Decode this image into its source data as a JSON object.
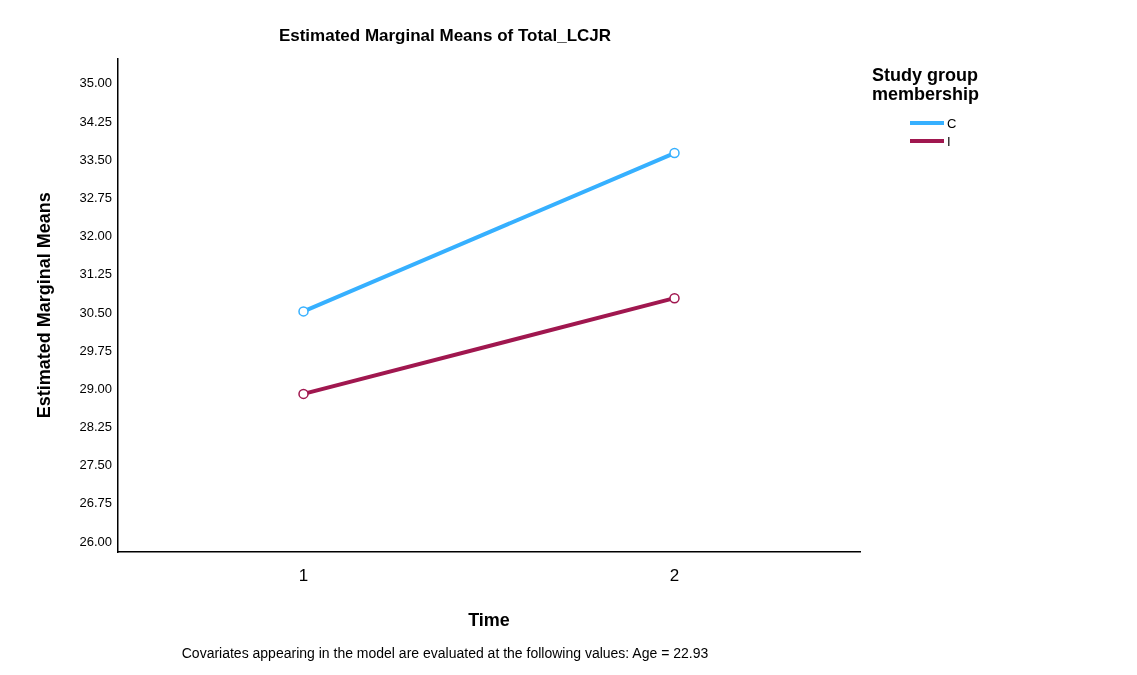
{
  "chart_data": {
    "type": "line",
    "title": "Estimated Marginal Means of Total_LCJR",
    "xlabel": "Time",
    "ylabel": "Estimated Marginal Means",
    "legend_title": "Study group membership",
    "legend": "top right",
    "marker": "circle",
    "grid": false,
    "categories": [
      "1",
      "2"
    ],
    "series": [
      {
        "name": "C",
        "color": "#36b0ff",
        "values": [
          30.53,
          33.64
        ]
      },
      {
        "name": "I",
        "color": "#a0174f",
        "values": [
          28.91,
          30.79
        ]
      }
    ],
    "ylim": [
      25.8,
      35.5
    ],
    "yticks": [
      {
        "value": 26,
        "label": "26.00"
      },
      {
        "value": 26.75,
        "label": "26.75"
      },
      {
        "value": 27.5,
        "label": "27.50"
      },
      {
        "value": 28.25,
        "label": "28.25"
      },
      {
        "value": 29,
        "label": "29.00"
      },
      {
        "value": 29.75,
        "label": "29.75"
      },
      {
        "value": 30.5,
        "label": "30.50"
      },
      {
        "value": 31.25,
        "label": "31.25"
      },
      {
        "value": 32,
        "label": "32.00"
      },
      {
        "value": 32.75,
        "label": "32.75"
      },
      {
        "value": 33.5,
        "label": "33.50"
      },
      {
        "value": 34.25,
        "label": "34.25"
      },
      {
        "value": 35,
        "label": "35.00"
      }
    ],
    "annotations": [
      "Covariates appearing in the model are evaluated at the following values: Age = 22.93"
    ]
  }
}
